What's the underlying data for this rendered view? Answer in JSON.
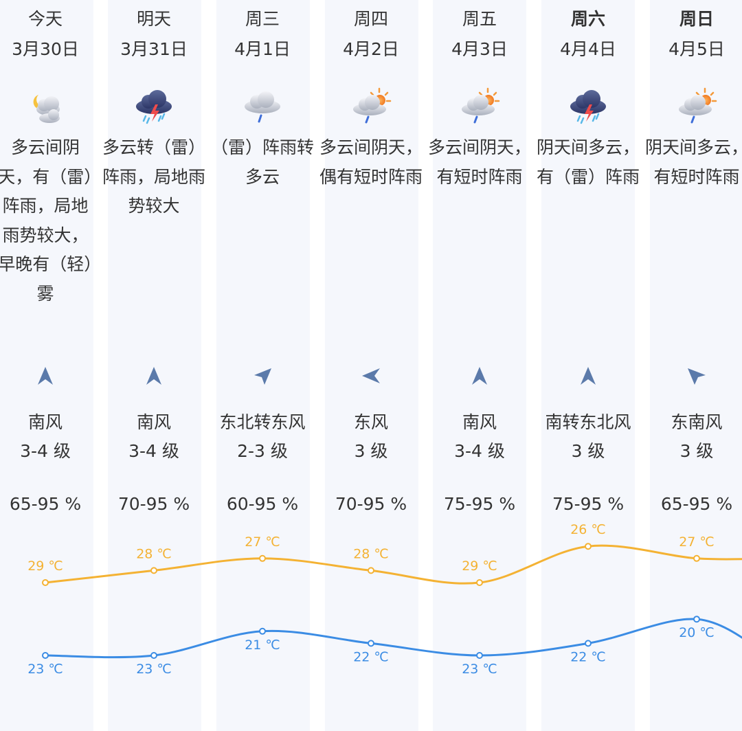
{
  "days": [
    {
      "day": "今天",
      "date": "3月30日",
      "bold": false,
      "icon": "partly-cloudy-night-icon",
      "desc": "多云间阴天，有（雷）阵雨，局地雨势较大，早晚有（轻）雾",
      "wind_dir": "南风",
      "wind_level": "3-4 级",
      "wind_arrow": "north-arrow-icon",
      "humidity": "65-95 %",
      "high": "29 ℃",
      "low": "23 ℃"
    },
    {
      "day": "明天",
      "date": "3月31日",
      "bold": false,
      "icon": "thunderstorm-icon",
      "desc": "多云转（雷）阵雨，局地雨势较大",
      "wind_dir": "南风",
      "wind_level": "3-4 级",
      "wind_arrow": "north-arrow-icon",
      "humidity": "70-95 %",
      "high": "28 ℃",
      "low": "23 ℃"
    },
    {
      "day": "周三",
      "date": "4月1日",
      "bold": false,
      "icon": "rain-cloud-icon",
      "desc": "（雷）阵雨转多云",
      "wind_dir": "东北转东风",
      "wind_level": "2-3 级",
      "wind_arrow": "northeast-arrow-icon",
      "humidity": "60-95 %",
      "high": "27 ℃",
      "low": "21 ℃"
    },
    {
      "day": "周四",
      "date": "4月2日",
      "bold": false,
      "icon": "sun-cloud-rain-icon",
      "desc": "多云间阴天，偶有短时阵雨",
      "wind_dir": "东风",
      "wind_level": "3 级",
      "wind_arrow": "west-arrow-icon",
      "humidity": "70-95 %",
      "high": "28 ℃",
      "low": "22 ℃"
    },
    {
      "day": "周五",
      "date": "4月3日",
      "bold": false,
      "icon": "sun-cloud-rain-icon",
      "desc": "多云间阴天，有短时阵雨",
      "wind_dir": "南风",
      "wind_level": "3-4 级",
      "wind_arrow": "north-arrow-icon",
      "humidity": "75-95 %",
      "high": "29 ℃",
      "low": "23 ℃"
    },
    {
      "day": "周六",
      "date": "4月4日",
      "bold": true,
      "icon": "thunderstorm-icon",
      "desc": "阴天间多云，有（雷）阵雨",
      "wind_dir": "南转东北风",
      "wind_level": "3 级",
      "wind_arrow": "north-arrow-icon",
      "humidity": "75-95 %",
      "high": "26 ℃",
      "low": "22 ℃"
    },
    {
      "day": "周日",
      "date": "4月5日",
      "bold": true,
      "icon": "sun-cloud-rain-icon",
      "desc": "阴天间多云，有短时阵雨",
      "wind_dir": "东南风",
      "wind_level": "3 级",
      "wind_arrow": "northwest-arrow-icon",
      "humidity": "65-95 %",
      "high": "27 ℃",
      "low": "20 ℃"
    }
  ],
  "colors": {
    "high_line": "#f4b233",
    "low_line": "#3b8ce4",
    "text": "#333333",
    "stripe": "#f5f7fc",
    "arrow": "#5b7aaa"
  },
  "chart_data": {
    "type": "line",
    "categories": [
      "3月30日",
      "3月31日",
      "4月1日",
      "4月2日",
      "4月3日",
      "4月4日",
      "4月5日"
    ],
    "series": [
      {
        "values": [
          29,
          28,
          27,
          28,
          29,
          26,
          27
        ]
      },
      {
        "values": [
          23,
          23,
          21,
          22,
          23,
          22,
          20
        ]
      }
    ],
    "unit": "℃"
  }
}
